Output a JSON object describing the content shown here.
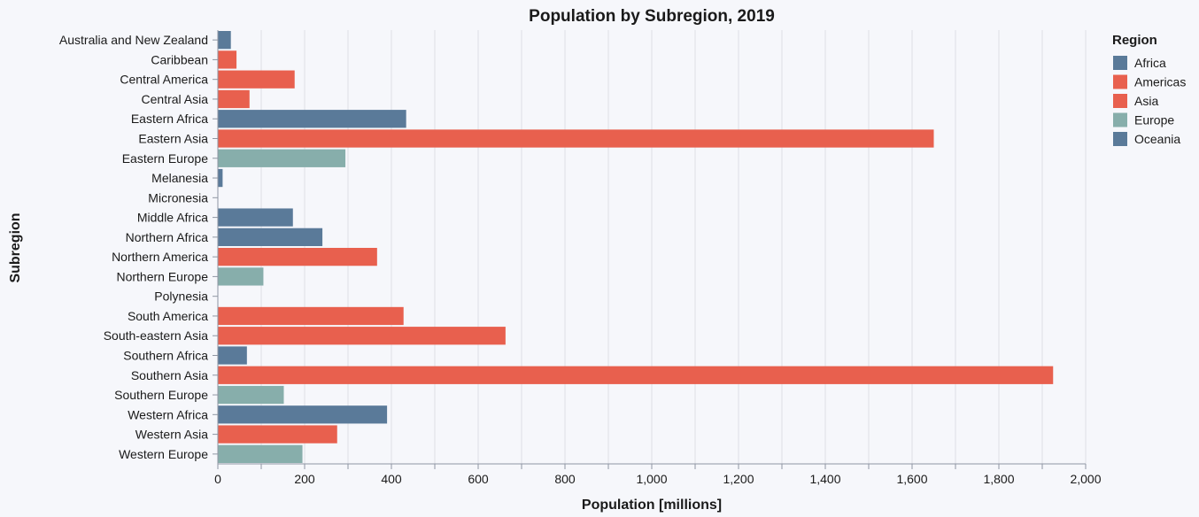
{
  "chart_data": {
    "type": "bar",
    "orientation": "horizontal",
    "title": "Population by Subregion, 2019",
    "xlabel": "Population [millions]",
    "ylabel": "Subregion",
    "xlim": [
      0,
      2000
    ],
    "x_ticks": [
      0,
      200,
      400,
      600,
      800,
      1000,
      1200,
      1400,
      1600,
      1800,
      2000
    ],
    "x_tick_labels": [
      "0",
      "200",
      "400",
      "600",
      "800",
      "1,000",
      "1,200",
      "1,400",
      "1,600",
      "1,800",
      "2,000"
    ],
    "grid": true,
    "legend": {
      "title": "Region",
      "placement": "right",
      "entries": [
        {
          "name": "Africa",
          "color": "#5a7a99"
        },
        {
          "name": "Americas",
          "color": "#e8604e"
        },
        {
          "name": "Asia",
          "color": "#e8604e"
        },
        {
          "name": "Europe",
          "color": "#87aeab"
        },
        {
          "name": "Oceania",
          "color": "#5a7a99"
        }
      ]
    },
    "categories": [
      "Australia and New Zealand",
      "Caribbean",
      "Central America",
      "Central Asia",
      "Eastern Africa",
      "Eastern Asia",
      "Eastern Europe",
      "Melanesia",
      "Micronesia",
      "Middle Africa",
      "Northern Africa",
      "Northern America",
      "Northern Europe",
      "Polynesia",
      "South America",
      "South-eastern Asia",
      "Southern Africa",
      "Southern Asia",
      "Southern Europe",
      "Western Africa",
      "Western Asia",
      "Western Europe"
    ],
    "values": [
      30,
      43,
      177,
      73,
      434,
      1650,
      294,
      11,
      0.5,
      173,
      241,
      367,
      105,
      0.7,
      428,
      663,
      67,
      1925,
      152,
      390,
      275,
      195
    ],
    "regions": [
      "Oceania",
      "Americas",
      "Americas",
      "Asia",
      "Africa",
      "Asia",
      "Europe",
      "Oceania",
      "Oceania",
      "Africa",
      "Africa",
      "Americas",
      "Europe",
      "Oceania",
      "Americas",
      "Asia",
      "Africa",
      "Asia",
      "Europe",
      "Africa",
      "Asia",
      "Europe"
    ]
  }
}
